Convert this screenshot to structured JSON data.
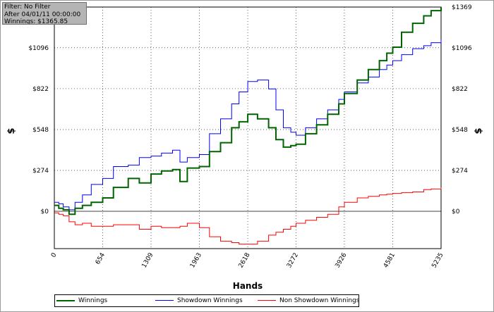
{
  "info_box": {
    "line1": "Filter: No Filter",
    "line2": "After 04/01/11 00:00:00",
    "line3": "Winnings: $1365.85"
  },
  "chart_data": {
    "type": "line",
    "xlabel": "Hands",
    "ylabel": "$",
    "xlim": [
      0,
      5235
    ],
    "ylim": [
      -250,
      1369
    ],
    "x_ticks": [
      0,
      654,
      1309,
      1963,
      2618,
      3272,
      3926,
      4581,
      5235
    ],
    "x_tick_labels": [
      "0",
      "654",
      "1309",
      "1963",
      "2618",
      "3272",
      "3926",
      "4581",
      "5235"
    ],
    "y_ticks": [
      0,
      274,
      548,
      822,
      1096,
      1369
    ],
    "y_tick_labels_left": [
      "$0",
      "$274",
      "$548",
      "$822",
      "$1096"
    ],
    "y_tick_labels_right": [
      "$0",
      "$274",
      "$548",
      "$822",
      "$1096",
      "$1369"
    ],
    "grid": true,
    "legend_position": "bottom-left",
    "series": [
      {
        "name": "Winnings",
        "color": "#006400",
        "x": [
          0,
          60,
          120,
          200,
          280,
          380,
          500,
          654,
          800,
          1000,
          1150,
          1309,
          1450,
          1600,
          1700,
          1800,
          1963,
          2100,
          2250,
          2400,
          2500,
          2618,
          2750,
          2900,
          3000,
          3100,
          3200,
          3272,
          3400,
          3550,
          3700,
          3850,
          3926,
          4100,
          4250,
          4400,
          4500,
          4581,
          4700,
          4850,
          5000,
          5100,
          5235
        ],
        "y": [
          40,
          20,
          10,
          -20,
          20,
          40,
          60,
          90,
          160,
          220,
          190,
          250,
          270,
          280,
          200,
          290,
          300,
          400,
          460,
          560,
          600,
          650,
          620,
          560,
          480,
          430,
          440,
          450,
          520,
          580,
          650,
          720,
          790,
          880,
          950,
          1010,
          1060,
          1100,
          1200,
          1260,
          1310,
          1345,
          1369
        ]
      },
      {
        "name": "Showdown Winnings",
        "color": "#0000ff",
        "x": [
          0,
          60,
          120,
          200,
          280,
          380,
          500,
          654,
          800,
          1000,
          1150,
          1309,
          1450,
          1600,
          1700,
          1800,
          1963,
          2100,
          2250,
          2400,
          2500,
          2618,
          2750,
          2900,
          3000,
          3100,
          3200,
          3272,
          3400,
          3550,
          3700,
          3850,
          3926,
          4100,
          4250,
          4400,
          4500,
          4581,
          4700,
          4850,
          5000,
          5100,
          5235
        ],
        "y": [
          60,
          50,
          30,
          10,
          60,
          110,
          180,
          220,
          300,
          310,
          360,
          370,
          390,
          410,
          330,
          360,
          380,
          520,
          620,
          720,
          800,
          870,
          880,
          820,
          680,
          560,
          530,
          510,
          560,
          620,
          680,
          750,
          800,
          860,
          900,
          950,
          980,
          1010,
          1050,
          1090,
          1110,
          1130,
          1150
        ]
      },
      {
        "name": "Non Showdown Winnings",
        "color": "#ff0000",
        "x": [
          0,
          60,
          120,
          200,
          280,
          380,
          500,
          654,
          800,
          1000,
          1150,
          1309,
          1450,
          1600,
          1700,
          1800,
          1963,
          2100,
          2250,
          2400,
          2500,
          2618,
          2750,
          2900,
          3000,
          3100,
          3200,
          3272,
          3400,
          3550,
          3700,
          3850,
          3926,
          4100,
          4250,
          4400,
          4500,
          4581,
          4700,
          4850,
          5000,
          5100,
          5235
        ],
        "y": [
          -10,
          -20,
          -30,
          -70,
          -90,
          -80,
          -100,
          -100,
          -90,
          -90,
          -120,
          -100,
          -110,
          -110,
          -100,
          -80,
          -110,
          -170,
          -200,
          -210,
          -220,
          -220,
          -200,
          -160,
          -140,
          -120,
          -100,
          -80,
          -60,
          -40,
          -20,
          30,
          60,
          90,
          100,
          110,
          115,
          120,
          125,
          130,
          145,
          150,
          160
        ]
      }
    ]
  }
}
